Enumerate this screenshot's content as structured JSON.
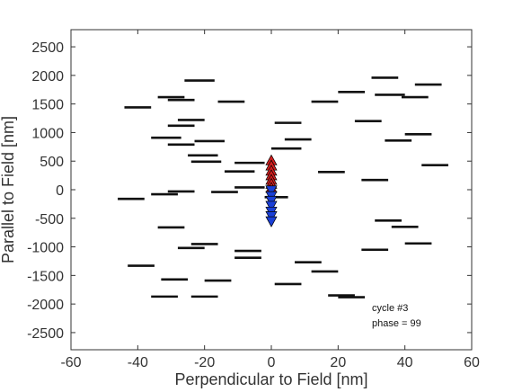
{
  "chart_data": {
    "type": "scatter",
    "xlabel": "Perpendicular to Field [nm]",
    "ylabel": "Parallel to Field [nm]",
    "xlim": [
      -60,
      60
    ],
    "ylim": [
      -2800,
      2800
    ],
    "xticks": [
      -60,
      -40,
      -20,
      0,
      20,
      40,
      60
    ],
    "yticks": [
      -2500,
      -2000,
      -1500,
      -1000,
      -500,
      0,
      500,
      1000,
      1500,
      2000,
      2500
    ],
    "grid": false,
    "annotations": [
      "cycle #3",
      "phase = 99"
    ],
    "colors": {
      "segment": "#111111",
      "up_triangle": "#d42020",
      "down_triangle": "#1a3fd6",
      "frame": "#333333"
    },
    "segments": [
      {
        "x1": -26,
        "x2": -17,
        "y": 1910
      },
      {
        "x1": -34,
        "x2": -26,
        "y": 1620
      },
      {
        "x1": -31,
        "x2": -23,
        "y": 1570
      },
      {
        "x1": -16,
        "x2": -8,
        "y": 1540
      },
      {
        "x1": -44,
        "x2": -36,
        "y": 1440
      },
      {
        "x1": -28,
        "x2": -20,
        "y": 1220
      },
      {
        "x1": -31,
        "x2": -23,
        "y": 1120
      },
      {
        "x1": -36,
        "x2": -27,
        "y": 910
      },
      {
        "x1": -23,
        "x2": -14,
        "y": 850
      },
      {
        "x1": -31,
        "x2": -23,
        "y": 790
      },
      {
        "x1": -25,
        "x2": -16,
        "y": 600
      },
      {
        "x1": -24,
        "x2": -15,
        "y": 490
      },
      {
        "x1": -11,
        "x2": -2,
        "y": 470
      },
      {
        "x1": -14,
        "x2": -5,
        "y": 320
      },
      {
        "x1": -11,
        "x2": -2,
        "y": 40
      },
      {
        "x1": -18,
        "x2": -10,
        "y": -40
      },
      {
        "x1": -36,
        "x2": -28,
        "y": -80
      },
      {
        "x1": -31,
        "x2": -23,
        "y": -30
      },
      {
        "x1": -46,
        "x2": -38,
        "y": -160
      },
      {
        "x1": -34,
        "x2": -26,
        "y": -660
      },
      {
        "x1": -24,
        "x2": -16,
        "y": -950
      },
      {
        "x1": -28,
        "x2": -20,
        "y": -1020
      },
      {
        "x1": -11,
        "x2": -3,
        "y": -1070
      },
      {
        "x1": -11,
        "x2": -3,
        "y": -1190
      },
      {
        "x1": -43,
        "x2": -35,
        "y": -1330
      },
      {
        "x1": -33,
        "x2": -25,
        "y": -1570
      },
      {
        "x1": -20,
        "x2": -12,
        "y": -1590
      },
      {
        "x1": -36,
        "x2": -28,
        "y": -1870
      },
      {
        "x1": -24,
        "x2": -16,
        "y": -1870
      },
      {
        "x1": -2,
        "x2": 5,
        "y": -130
      },
      {
        "x1": 1,
        "x2": 9,
        "y": 1170
      },
      {
        "x1": 4,
        "x2": 12,
        "y": 880
      },
      {
        "x1": 0,
        "x2": 9,
        "y": 720
      },
      {
        "x1": 12,
        "x2": 20,
        "y": 1540
      },
      {
        "x1": 20,
        "x2": 28,
        "y": 1710
      },
      {
        "x1": 30,
        "x2": 38,
        "y": 1960
      },
      {
        "x1": 31,
        "x2": 40,
        "y": 1660
      },
      {
        "x1": 39,
        "x2": 47,
        "y": 1620
      },
      {
        "x1": 43,
        "x2": 51,
        "y": 1840
      },
      {
        "x1": 25,
        "x2": 33,
        "y": 1200
      },
      {
        "x1": 40,
        "x2": 48,
        "y": 970
      },
      {
        "x1": 34,
        "x2": 42,
        "y": 860
      },
      {
        "x1": 45,
        "x2": 53,
        "y": 430
      },
      {
        "x1": 14,
        "x2": 22,
        "y": 310
      },
      {
        "x1": 27,
        "x2": 35,
        "y": 170
      },
      {
        "x1": 31,
        "x2": 39,
        "y": -540
      },
      {
        "x1": 36,
        "x2": 44,
        "y": -650
      },
      {
        "x1": 40,
        "x2": 48,
        "y": -940
      },
      {
        "x1": 27,
        "x2": 35,
        "y": -1050
      },
      {
        "x1": 7,
        "x2": 15,
        "y": -1270
      },
      {
        "x1": 12,
        "x2": 20,
        "y": -1430
      },
      {
        "x1": 1,
        "x2": 9,
        "y": -1650
      },
      {
        "x1": 17,
        "x2": 25,
        "y": -1850
      },
      {
        "x1": 20,
        "x2": 28,
        "y": -1880
      }
    ],
    "up_triangles": {
      "x": [
        0,
        0,
        0,
        0,
        0,
        0,
        0
      ],
      "y": [
        520,
        430,
        340,
        260,
        180,
        110,
        40
      ]
    },
    "down_triangles": {
      "x": [
        0,
        0,
        0,
        0,
        0,
        0,
        0
      ],
      "y": [
        -20,
        -120,
        -200,
        -290,
        -390,
        -470,
        -560
      ]
    }
  }
}
